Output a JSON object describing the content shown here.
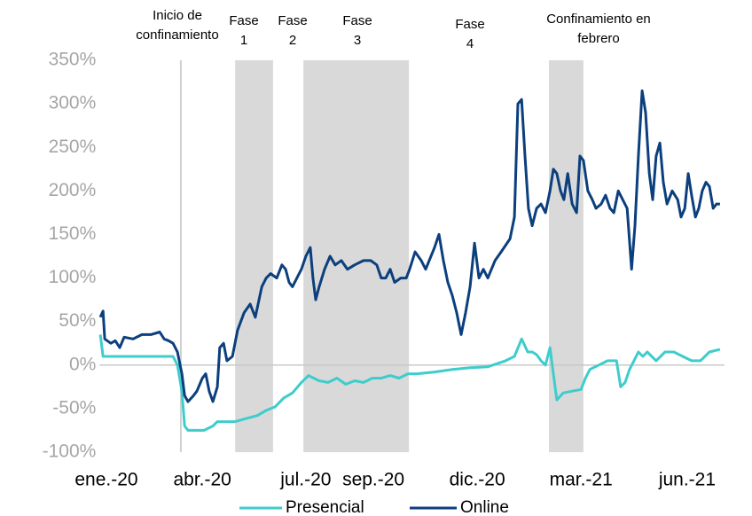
{
  "chart_data": {
    "type": "line",
    "xlim": [
      -0.2,
      18.1
    ],
    "xticks": [
      {
        "value": 0,
        "label": "ene.-20"
      },
      {
        "value": 2.81,
        "label": "abr.-20"
      },
      {
        "value": 5.84,
        "label": "jul.-20"
      },
      {
        "value": 7.82,
        "label": "sep.-20"
      },
      {
        "value": 10.86,
        "label": "dic.-20"
      },
      {
        "value": 13.9,
        "label": "mar.-21"
      },
      {
        "value": 17.01,
        "label": "jun.-21"
      }
    ],
    "ylim": [
      -100,
      350
    ],
    "yticks": [
      {
        "value": -100,
        "label": "-100%"
      },
      {
        "value": -50,
        "label": "-50%"
      },
      {
        "value": 0,
        "label": "0%"
      },
      {
        "value": 50,
        "label": "50%"
      },
      {
        "value": 100,
        "label": "100%"
      },
      {
        "value": 150,
        "label": "150%"
      },
      {
        "value": 200,
        "label": "200%"
      },
      {
        "value": 250,
        "label": "250%"
      },
      {
        "value": 300,
        "label": "300%"
      },
      {
        "value": 350,
        "label": "350%"
      }
    ],
    "shaded_regions": [
      [
        3.77,
        4.88
      ],
      [
        5.77,
        8.86
      ],
      [
        12.96,
        13.97
      ]
    ],
    "event_line": 2.18,
    "annotations": [
      [
        "Inicio de",
        "confinamiento"
      ],
      [
        "Fase",
        "1"
      ],
      [
        "Fase",
        "2"
      ],
      [
        "Fase",
        "3"
      ],
      [
        "Fase",
        "4"
      ],
      [
        "Confinamiento en",
        "febrero"
      ]
    ],
    "legend": "bottom",
    "series": [
      {
        "name": "Presencial",
        "color": "#3fcccc",
        "x": [
          -0.18,
          -0.1,
          0.13,
          0.52,
          1.04,
          1.56,
          1.95,
          2.08,
          2.21,
          2.29,
          2.39,
          2.6,
          2.86,
          3.12,
          3.25,
          3.51,
          3.77,
          4.03,
          4.42,
          4.68,
          4.94,
          5.19,
          5.45,
          5.71,
          5.92,
          6.23,
          6.49,
          6.75,
          7.01,
          7.27,
          7.53,
          7.79,
          8.05,
          8.31,
          8.57,
          8.83,
          9.09,
          9.61,
          10.13,
          10.65,
          11.17,
          11.69,
          11.95,
          12.16,
          12.34,
          12.47,
          12.6,
          12.73,
          12.86,
          12.99,
          13.09,
          13.19,
          13.38,
          13.64,
          13.9,
          14.03,
          14.16,
          14.42,
          14.68,
          14.94,
          15.06,
          15.19,
          15.32,
          15.45,
          15.58,
          15.71,
          15.84,
          16.1,
          16.36,
          16.62,
          16.88,
          17.14,
          17.4,
          17.66,
          17.97
        ],
        "values": [
          35,
          10,
          10,
          10,
          10,
          10,
          10,
          0,
          -30,
          -70,
          -75,
          -75,
          -75,
          -70,
          -65,
          -65,
          -65,
          -62,
          -58,
          -52,
          -48,
          -38,
          -32,
          -20,
          -12,
          -18,
          -20,
          -15,
          -22,
          -18,
          -20,
          -15,
          -15,
          -12,
          -15,
          -10,
          -10,
          -8,
          -5,
          -3,
          -2,
          5,
          10,
          30,
          15,
          15,
          12,
          5,
          0,
          20,
          -10,
          -40,
          -32,
          -30,
          -28,
          -15,
          -5,
          0,
          5,
          5,
          -25,
          -20,
          -5,
          5,
          15,
          10,
          15,
          5,
          15,
          15,
          10,
          5,
          5,
          15,
          18
        ]
      },
      {
        "name": "Online",
        "color": "#0b3f7d",
        "x": [
          -0.18,
          -0.1,
          -0.05,
          0.13,
          0.26,
          0.39,
          0.52,
          0.78,
          1.04,
          1.3,
          1.56,
          1.69,
          1.82,
          1.95,
          2.08,
          2.21,
          2.29,
          2.39,
          2.55,
          2.65,
          2.81,
          2.91,
          3.01,
          3.12,
          3.25,
          3.32,
          3.43,
          3.53,
          3.69,
          3.84,
          4.03,
          4.21,
          4.36,
          4.55,
          4.68,
          4.81,
          4.99,
          5.14,
          5.25,
          5.35,
          5.45,
          5.58,
          5.71,
          5.84,
          5.97,
          6.05,
          6.13,
          6.23,
          6.39,
          6.55,
          6.7,
          6.88,
          7.06,
          7.27,
          7.53,
          7.74,
          7.92,
          8.05,
          8.18,
          8.31,
          8.44,
          8.62,
          8.78,
          8.88,
          9.04,
          9.22,
          9.35,
          9.61,
          9.74,
          9.87,
          10.0,
          10.13,
          10.26,
          10.39,
          10.52,
          10.65,
          10.78,
          10.91,
          11.04,
          11.17,
          11.38,
          11.56,
          11.82,
          11.95,
          12.05,
          12.16,
          12.26,
          12.36,
          12.47,
          12.6,
          12.73,
          12.86,
          12.99,
          13.09,
          13.19,
          13.3,
          13.4,
          13.51,
          13.64,
          13.77,
          13.87,
          13.97,
          14.1,
          14.23,
          14.34,
          14.49,
          14.62,
          14.75,
          14.86,
          14.99,
          15.12,
          15.25,
          15.38,
          15.48,
          15.58,
          15.69,
          15.79,
          15.9,
          16.0,
          16.1,
          16.21,
          16.31,
          16.42,
          16.57,
          16.73,
          16.83,
          16.94,
          17.04,
          17.14,
          17.25,
          17.35,
          17.45,
          17.56,
          17.66,
          17.77,
          17.87,
          17.97
        ],
        "values": [
          55,
          62,
          30,
          25,
          28,
          20,
          32,
          30,
          35,
          35,
          38,
          30,
          28,
          25,
          15,
          -10,
          -35,
          -42,
          -35,
          -30,
          -15,
          -10,
          -30,
          -42,
          -25,
          20,
          25,
          5,
          10,
          40,
          60,
          70,
          55,
          90,
          100,
          105,
          100,
          115,
          110,
          95,
          90,
          100,
          110,
          125,
          135,
          100,
          75,
          90,
          110,
          125,
          115,
          120,
          110,
          115,
          120,
          120,
          115,
          100,
          100,
          110,
          95,
          100,
          100,
          110,
          130,
          120,
          110,
          135,
          150,
          120,
          95,
          80,
          60,
          35,
          60,
          90,
          140,
          100,
          110,
          100,
          120,
          130,
          145,
          170,
          300,
          305,
          240,
          180,
          160,
          180,
          185,
          175,
          200,
          225,
          220,
          200,
          190,
          220,
          185,
          175,
          240,
          235,
          200,
          190,
          180,
          185,
          195,
          180,
          175,
          200,
          190,
          180,
          110,
          160,
          240,
          315,
          290,
          220,
          190,
          240,
          255,
          210,
          185,
          200,
          190,
          170,
          180,
          220,
          195,
          170,
          180,
          200,
          210,
          205,
          180,
          185,
          185
        ]
      }
    ]
  }
}
